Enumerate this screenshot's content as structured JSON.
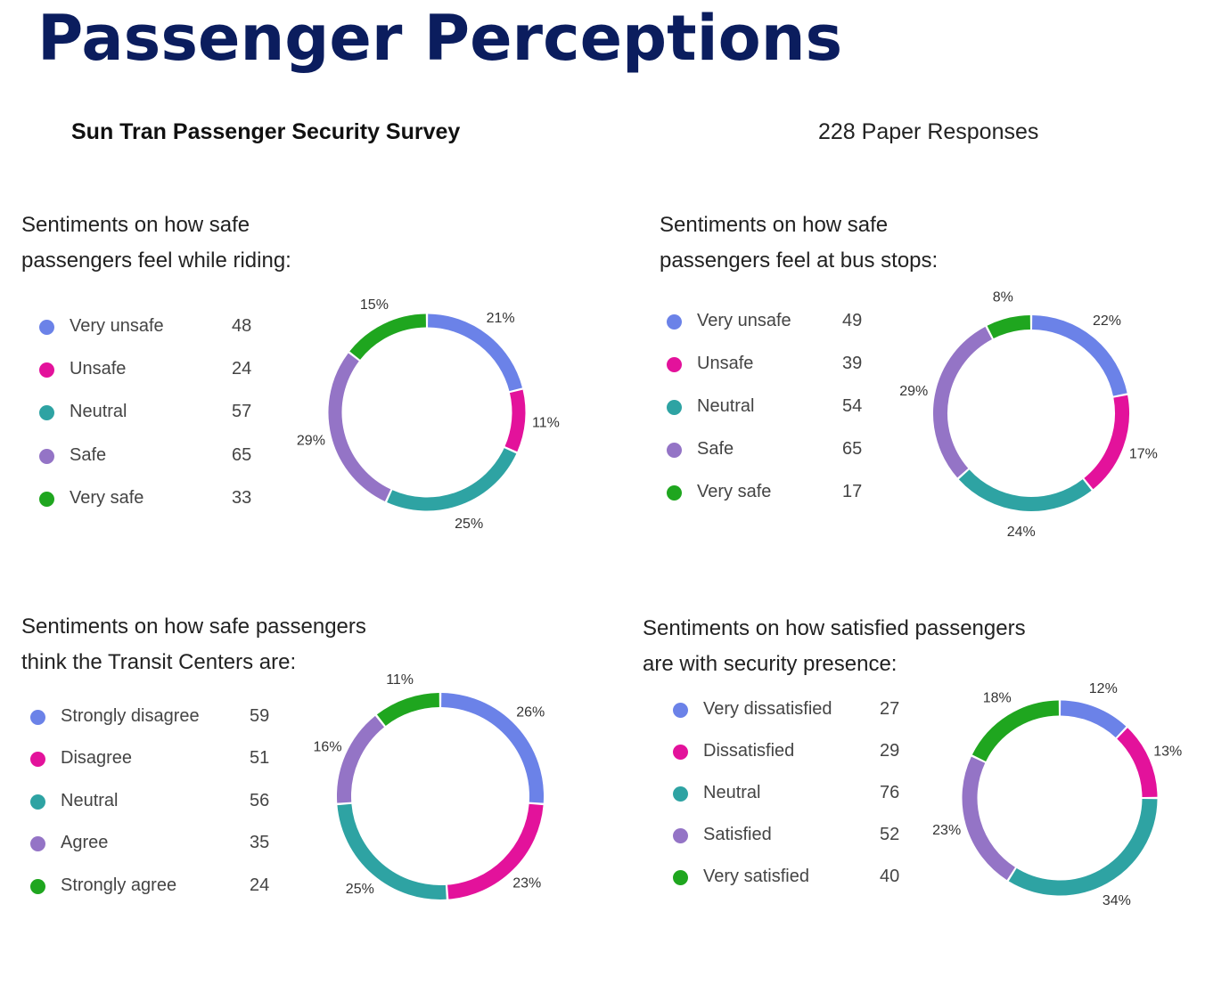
{
  "page": {
    "title": "Passenger Perceptions",
    "survey_name": "Sun Tran Passenger Security Survey",
    "responses": "228 Paper Responses"
  },
  "colors": {
    "c1": "#6b82e8",
    "c2": "#e3129b",
    "c3": "#2ea3a3",
    "c4": "#9474c6",
    "c5": "#1fa61f"
  },
  "chart_data": [
    {
      "type": "pie",
      "title_lines": [
        "Sentiments on how safe",
        "passengers feel while riding:"
      ],
      "categories": [
        "Very unsafe",
        "Unsafe",
        "Neutral",
        "Safe",
        "Very safe"
      ],
      "values": [
        48,
        24,
        57,
        65,
        33
      ],
      "labels": [
        "21%",
        "11%",
        "25%",
        "29%",
        "15%"
      ]
    },
    {
      "type": "pie",
      "title_lines": [
        "Sentiments on how safe",
        "passengers feel at bus stops:"
      ],
      "categories": [
        "Very unsafe",
        "Unsafe",
        "Neutral",
        "Safe",
        "Very safe"
      ],
      "values": [
        49,
        39,
        54,
        65,
        17
      ],
      "labels": [
        "22%",
        "17%",
        "24%",
        "29%",
        "8%"
      ]
    },
    {
      "type": "pie",
      "title_lines": [
        "Sentiments on how safe passengers",
        "think the Transit Centers are:"
      ],
      "categories": [
        "Strongly disagree",
        "Disagree",
        "Neutral",
        "Agree",
        "Strongly agree"
      ],
      "values": [
        59,
        51,
        56,
        35,
        24
      ],
      "labels": [
        "26%",
        "23%",
        "25%",
        "16%",
        "11%"
      ]
    },
    {
      "type": "pie",
      "title_lines": [
        "Sentiments on how satisfied passengers",
        "are with security presence:"
      ],
      "categories": [
        "Very dissatisfied",
        "Dissatisfied",
        "Neutral",
        "Satisfied",
        "Very satisfied"
      ],
      "values": [
        27,
        29,
        76,
        52,
        40
      ],
      "labels": [
        "12%",
        "13%",
        "34%",
        "23%",
        "18%"
      ]
    }
  ]
}
